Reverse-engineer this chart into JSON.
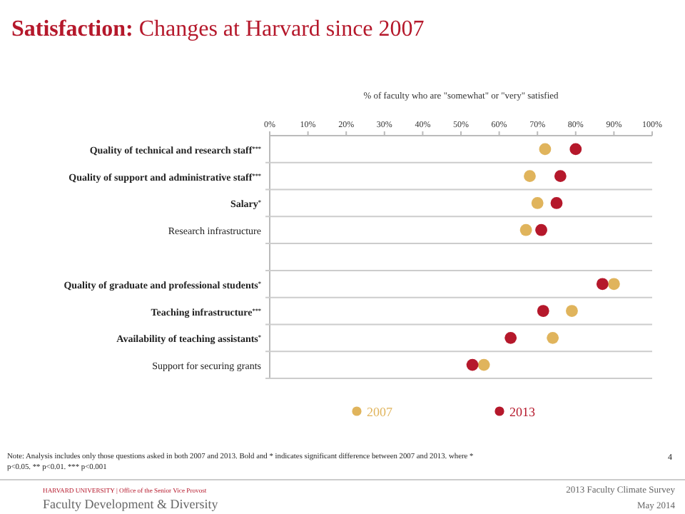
{
  "chart_data": {
    "type": "scatter",
    "orientation": "horizontal",
    "title": "Satisfaction: Changes at Harvard since 2007",
    "xlabel": "% of faculty who are \"somewhat\" or \"very\" satisfied",
    "categories": [
      "Quality of technical and research staff$^{***}$",
      "Quality of support and administrative staff$^{***}$",
      "Salary$^{*}$",
      "Research infrastructure",
      null,
      "Quality of graduate and professional students$^{*}$",
      "Teaching infrastructure$^{***}$",
      "Availability of teaching assistants$^{*}$",
      "Support for securing grants"
    ],
    "xlim": [
      0,
      100
    ],
    "xticks": [
      {
        "value": 0,
        "label": "0%"
      },
      {
        "value": 10,
        "label": "10%"
      },
      {
        "value": 20,
        "label": "20%"
      },
      {
        "value": 30,
        "label": "30%"
      },
      {
        "value": 40,
        "label": "40%"
      },
      {
        "value": 50,
        "label": "50%"
      },
      {
        "value": 60,
        "label": "60%"
      },
      {
        "value": 70,
        "label": "70%"
      },
      {
        "value": 80,
        "label": "80%"
      },
      {
        "value": 90,
        "label": "90%"
      },
      {
        "value": 100,
        "label": "100%"
      }
    ],
    "series": [
      {
        "name": "2007",
        "color": "#e0b45c",
        "values": [
          72,
          68,
          70,
          67,
          null,
          90,
          79,
          74,
          56
        ]
      },
      {
        "name": "2013",
        "color": "#b5182b",
        "values": [
          80,
          76,
          75,
          71,
          null,
          87,
          71.5,
          63,
          53
        ]
      }
    ],
    "marker": "circle",
    "legend": "bottom",
    "annotations": [
      "Note: Analysis includes only those questions asked in both 2007 and 2013.  Bold and * indicates significant difference between  2007 and 2013. where * p<0.05. ** p<0.01. *** p<0.001",
      "4",
      "HARVARD UNIVERSITY | Office of the Senior Vice Provost",
      "Faculty Development & Diversity",
      "2013 Faculty  Climate  Survey",
      "May 2014"
    ]
  }
}
